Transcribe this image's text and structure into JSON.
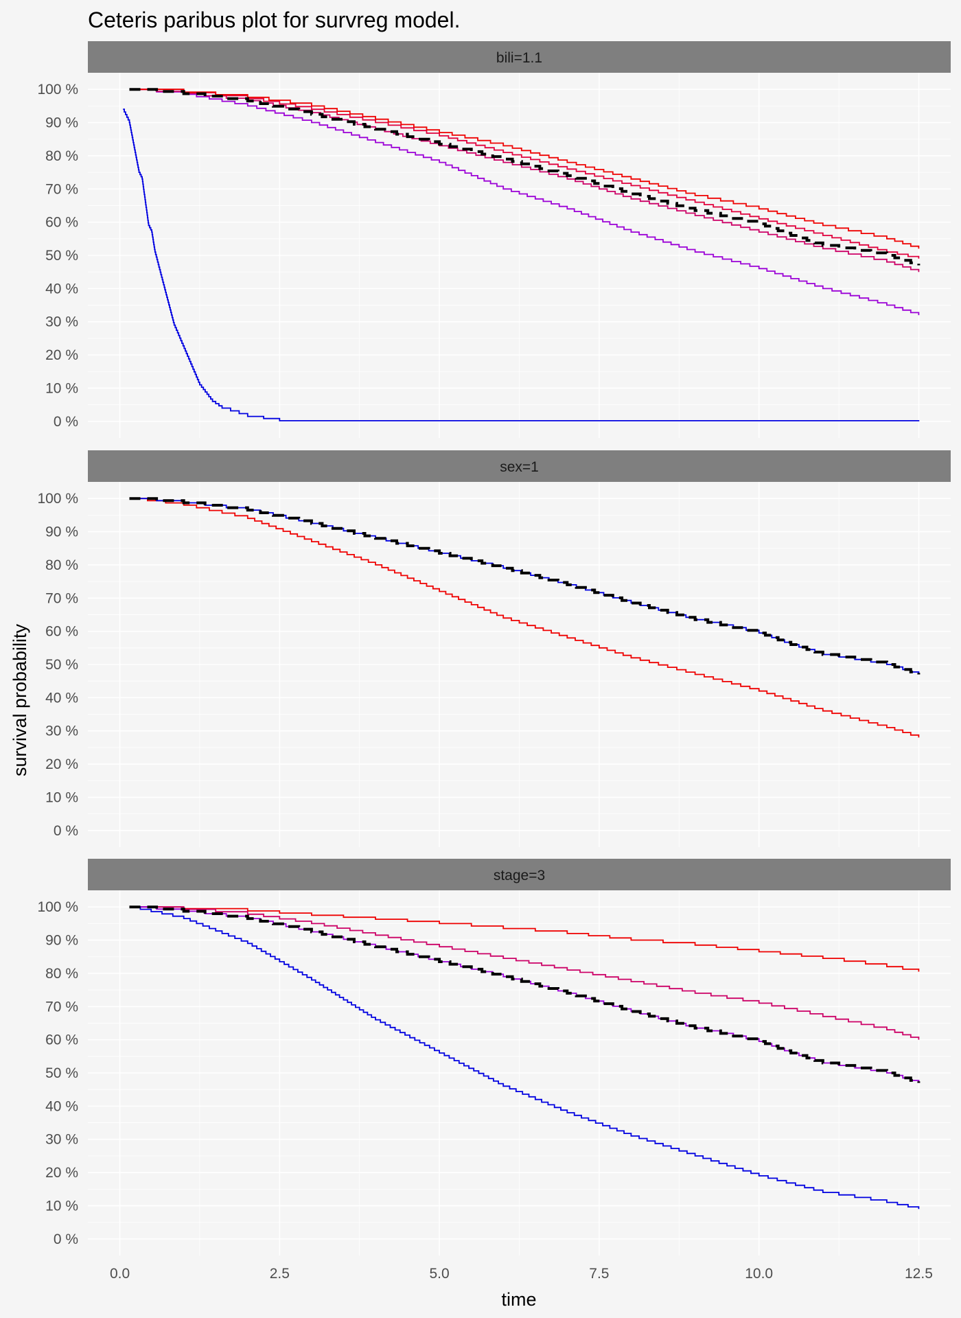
{
  "chart_data": {
    "type": "line",
    "title": "Ceteris paribus plot for survreg model.",
    "xlabel": "time",
    "ylabel": "survival probability",
    "xlim": [
      -0.5,
      13.0
    ],
    "ylim": [
      -5,
      105
    ],
    "x_ticks": [
      0.0,
      2.5,
      5.0,
      7.5,
      10.0,
      12.5
    ],
    "x_tick_labels": [
      "0.0",
      "2.5",
      "5.0",
      "7.5",
      "10.0",
      "12.5"
    ],
    "y_ticks": [
      0,
      10,
      20,
      30,
      40,
      50,
      60,
      70,
      80,
      90,
      100
    ],
    "y_tick_labels": [
      "0 %",
      "10 %",
      "20 %",
      "30 %",
      "40 %",
      "50 %",
      "60 %",
      "70 %",
      "80 %",
      "90 %",
      "100 %"
    ],
    "grid": true,
    "legend": "none",
    "panels": [
      {
        "strip": "bili=1.1",
        "series": [
          {
            "color": "#9b00d6",
            "dashed": false,
            "x": [
              0.15,
              1.0,
              2.0,
              3.0,
              4.0,
              5.0,
              6.0,
              7.0,
              8.0,
              9.0,
              10.0,
              11.0,
              12.0,
              12.5
            ],
            "y": [
              100,
              98.5,
              95,
              90,
              84,
              78,
              70,
              64,
              57,
              51,
              46,
              40,
              35,
              32
            ]
          },
          {
            "color": "#cc0066",
            "dashed": false,
            "x": [
              0.15,
              1.0,
              2.0,
              3.0,
              4.0,
              5.0,
              6.0,
              7.0,
              8.0,
              9.0,
              10.0,
              11.0,
              12.0,
              12.5
            ],
            "y": [
              100,
              98.8,
              96.6,
              93,
              88,
              83,
              78,
              73,
              67,
              62,
              57,
              52,
              48,
              45
            ]
          },
          {
            "color": "#e0003c",
            "dashed": false,
            "x": [
              0.15,
              1.0,
              2.0,
              3.0,
              4.0,
              5.0,
              6.0,
              7.0,
              8.0,
              9.0,
              10.0,
              11.0,
              12.0,
              12.5
            ],
            "y": [
              100,
              99,
              97.2,
              94,
              90,
              86,
              81,
              76,
              71,
              66,
              61,
              56,
              51,
              49
            ]
          },
          {
            "color": "#ee0000",
            "dashed": false,
            "x": [
              0.15,
              1.0,
              2.0,
              3.0,
              4.0,
              5.0,
              6.0,
              7.0,
              8.0,
              9.0,
              10.0,
              11.0,
              12.0,
              12.5
            ],
            "y": [
              100,
              99.2,
              97.6,
              95,
              91,
              87,
              83,
              78,
              73,
              68,
              64,
              59,
              55,
              52
            ]
          },
          {
            "color": "#0000e0",
            "dashed": false,
            "x": [
              0.05,
              0.15,
              0.3,
              0.35,
              0.45,
              0.5,
              0.55,
              0.85,
              1.25,
              1.45,
              1.6,
              2.0,
              2.5,
              12.5
            ],
            "y": [
              94,
              90,
              75,
              73,
              59,
              57,
              51,
              29,
              11,
              6,
              4,
              1.5,
              0.2,
              0
            ]
          },
          {
            "color": "#000000",
            "dashed": true,
            "x": [
              0.15,
              1.0,
              2.0,
              3.0,
              4.0,
              5.0,
              6.0,
              7.0,
              8.0,
              9.0,
              10.0,
              10.5,
              11.0,
              12.0,
              12.5
            ],
            "y": [
              100,
              98.7,
              96.5,
              92.5,
              88,
              83.5,
              79,
              74,
              68.5,
              63.5,
              59.5,
              56,
              53,
              50,
              47
            ]
          }
        ]
      },
      {
        "strip": "sex=1",
        "series": [
          {
            "color": "#ee0000",
            "dashed": false,
            "x": [
              0.15,
              1.0,
              2.0,
              3.0,
              4.0,
              5.0,
              6.0,
              7.0,
              8.0,
              9.0,
              10.0,
              11.0,
              12.0,
              12.5
            ],
            "y": [
              100,
              98,
              94,
              87,
              80,
              72,
              64,
              58,
              52,
              47,
              42,
              36,
              31,
              28
            ]
          },
          {
            "color": "#0000e0",
            "dashed": false,
            "x": [
              0.15,
              1.0,
              2.0,
              3.0,
              4.0,
              5.0,
              6.0,
              7.0,
              8.0,
              9.0,
              10.0,
              10.5,
              11.0,
              12.0,
              12.5
            ],
            "y": [
              100,
              98.7,
              96.5,
              92.5,
              88,
              83.5,
              79,
              74,
              68.5,
              63.5,
              59.5,
              56,
              53,
              50,
              47
            ]
          },
          {
            "color": "#000000",
            "dashed": true,
            "x": [
              0.15,
              1.0,
              2.0,
              3.0,
              4.0,
              5.0,
              6.0,
              7.0,
              8.0,
              9.0,
              10.0,
              10.5,
              11.0,
              12.0,
              12.5
            ],
            "y": [
              100,
              98.7,
              96.5,
              92.5,
              88,
              83.5,
              79,
              74,
              68.5,
              63.5,
              59.5,
              56,
              53,
              50,
              47
            ]
          }
        ]
      },
      {
        "strip": "stage=3",
        "series": [
          {
            "color": "#ee0000",
            "dashed": false,
            "x": [
              0.15,
              1.0,
              2.0,
              3.0,
              4.0,
              5.0,
              6.0,
              7.0,
              8.0,
              9.0,
              10.0,
              11.0,
              12.0,
              12.5
            ],
            "y": [
              100,
              99.5,
              98.8,
              97.5,
              96.3,
              95,
              93.5,
              92,
              90,
              88.5,
              86.5,
              84.5,
              82,
              80.5
            ]
          },
          {
            "color": "#cc0066",
            "dashed": false,
            "x": [
              0.15,
              1.0,
              2.0,
              3.0,
              4.0,
              5.0,
              6.0,
              7.0,
              8.0,
              9.0,
              10.0,
              11.0,
              12.0,
              12.5
            ],
            "y": [
              100,
              99.3,
              97.8,
              95,
              91.5,
              88,
              84.5,
              81,
              77.5,
              74,
              71,
              67,
              63,
              60
            ]
          },
          {
            "color": "#9b00d6",
            "dashed": false,
            "x": [
              0.15,
              1.0,
              2.0,
              3.0,
              4.0,
              5.0,
              6.0,
              7.0,
              8.0,
              9.0,
              10.0,
              10.5,
              11.0,
              12.0,
              12.5
            ],
            "y": [
              100,
              98.7,
              96.5,
              92.5,
              88,
              83.5,
              79,
              74,
              68.5,
              63.5,
              59.5,
              56,
              53,
              50,
              47
            ]
          },
          {
            "color": "#0000e0",
            "dashed": false,
            "x": [
              0.15,
              1.0,
              2.0,
              3.0,
              4.0,
              5.0,
              6.0,
              7.0,
              8.0,
              9.0,
              10.0,
              11.0,
              12.0,
              12.5
            ],
            "y": [
              100,
              96.5,
              89,
              78,
              66,
              56,
              46,
              38,
              31,
              25,
              19,
              14,
              11,
              9
            ]
          },
          {
            "color": "#000000",
            "dashed": true,
            "x": [
              0.15,
              1.0,
              2.0,
              3.0,
              4.0,
              5.0,
              6.0,
              7.0,
              8.0,
              9.0,
              10.0,
              10.5,
              11.0,
              12.0,
              12.5
            ],
            "y": [
              100,
              98.7,
              96.5,
              92.5,
              88,
              83.5,
              79,
              74,
              68.5,
              63.5,
              59.5,
              56,
              53,
              50,
              47
            ]
          }
        ]
      }
    ]
  }
}
